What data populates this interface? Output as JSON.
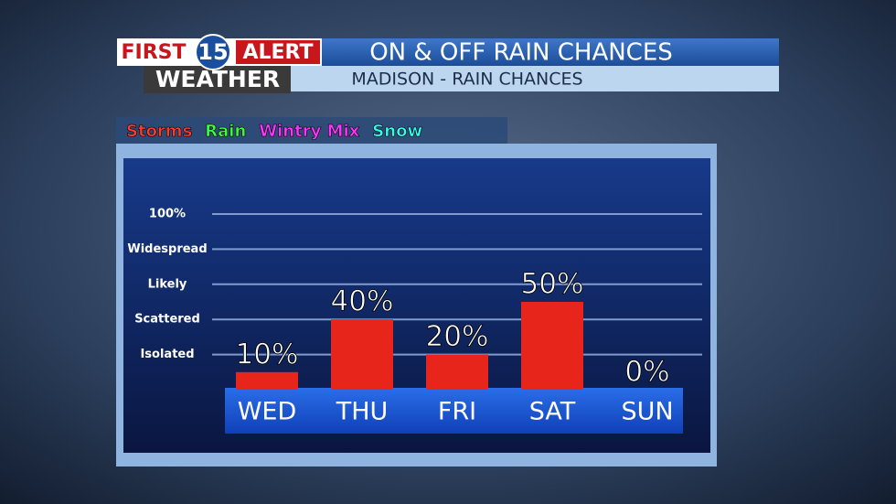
{
  "header": {
    "brand_first": "FIRST",
    "brand_number": "15",
    "brand_alert": "ALERT",
    "brand_weather": "WEATHER"
  },
  "chart_data": {
    "type": "bar",
    "title": "ON & OFF RAIN CHANCES",
    "subtitle": "MADISON - RAIN CHANCES",
    "legend": [
      {
        "name": "Storms",
        "color": "#ff3b2f"
      },
      {
        "name": "Rain",
        "color": "#3cff3c"
      },
      {
        "name": "Wintry Mix",
        "color": "#ff33ff"
      },
      {
        "name": "Snow",
        "color": "#33ffee"
      }
    ],
    "categories": [
      "WED",
      "THU",
      "FRI",
      "SAT",
      "SUN"
    ],
    "values": [
      10,
      40,
      20,
      50,
      0
    ],
    "value_labels": [
      "10%",
      "40%",
      "20%",
      "50%",
      "0%"
    ],
    "color": "#e8251a",
    "ylim": [
      0,
      100
    ],
    "yticks": [
      {
        "value": 20,
        "label": "Isolated"
      },
      {
        "value": 40,
        "label": "Scattered"
      },
      {
        "value": 60,
        "label": "Likely"
      },
      {
        "value": 80,
        "label": "Widespread"
      },
      {
        "value": 100,
        "label": "100%"
      }
    ],
    "grid": true
  }
}
